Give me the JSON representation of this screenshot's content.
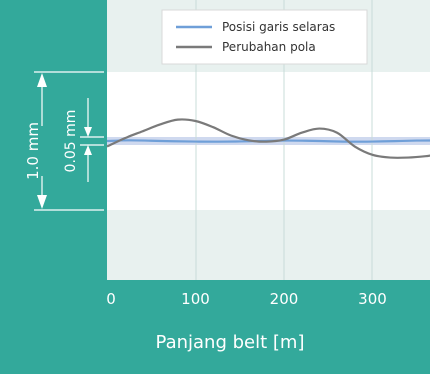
{
  "chart_data": {
    "type": "line",
    "xlabel": "Panjang belt [m]",
    "xlim": [
      0,
      370
    ],
    "xticks": [
      0,
      100,
      200,
      300
    ],
    "ylim": [
      -0.5,
      0.5
    ],
    "legend_position": "top-right",
    "series": [
      {
        "name": "Posisi garis selaras",
        "color": "#6f9fd8",
        "x": [
          0,
          25,
          50,
          75,
          100,
          125,
          150,
          175,
          200,
          225,
          250,
          275,
          300,
          325,
          350,
          370
        ],
        "y": [
          0.0,
          0.005,
          0.002,
          -0.002,
          -0.004,
          -0.005,
          -0.003,
          0.0,
          0.003,
          0.002,
          -0.002,
          -0.005,
          -0.004,
          -0.001,
          0.003,
          0.004
        ]
      },
      {
        "name": "Perubahan pola",
        "color": "#7a7a7a",
        "x": [
          0,
          20,
          40,
          60,
          80,
          100,
          120,
          140,
          160,
          180,
          200,
          220,
          240,
          260,
          280,
          300,
          320,
          340,
          360,
          370
        ],
        "y": [
          -0.04,
          0.02,
          0.07,
          0.12,
          0.155,
          0.145,
          0.1,
          0.04,
          0.005,
          -0.005,
          0.01,
          0.06,
          0.09,
          0.06,
          -0.04,
          -0.1,
          -0.12,
          -0.12,
          -0.11,
          -0.1
        ]
      }
    ]
  },
  "dimensions": {
    "outer": "1.0 mm",
    "inner": "0.05 mm"
  },
  "colors": {
    "frame": "#33a99b",
    "band": "#e8f1ef",
    "inner_band": "#cfd9ef"
  }
}
